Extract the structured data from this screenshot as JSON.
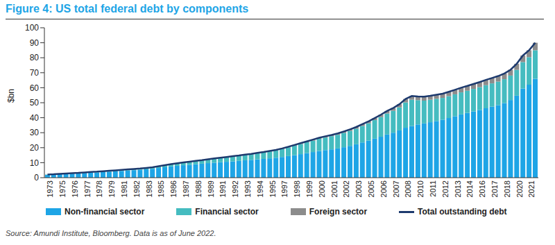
{
  "chart_data": {
    "type": "bar",
    "title": "Figure 4: US total federal debt by components",
    "ylabel": "$bn",
    "source": "Source: Amundi Institute, Bloomberg. Data is as of June 2022.",
    "stacked": true,
    "grid": false,
    "legend": "bottom",
    "ylim": [
      0,
      100
    ],
    "yticks": [
      0,
      10,
      20,
      30,
      40,
      50,
      60,
      70,
      80,
      90,
      100
    ],
    "categories": [
      "1973",
      null,
      "1975",
      null,
      "1976",
      null,
      "1977",
      null,
      "1978",
      null,
      "1979",
      null,
      "1981",
      null,
      "1982",
      null,
      "1983",
      null,
      "1985",
      null,
      "1986",
      null,
      "1987",
      null,
      "1988",
      null,
      "1989",
      null,
      "1991",
      null,
      "1992",
      null,
      "1993",
      null,
      "1994",
      null,
      "1995",
      null,
      "1997",
      null,
      "1998",
      null,
      "1999",
      null,
      "2000",
      null,
      "2001",
      null,
      "2002",
      null,
      "2003",
      null,
      "2005",
      null,
      "2006",
      null,
      "2007",
      null,
      "2008",
      null,
      "2010",
      null,
      "2011",
      null,
      "2012",
      null,
      "2013",
      null,
      "2014",
      null,
      "2016",
      null,
      "2017",
      null,
      "2018",
      null,
      "2020",
      null,
      "2021",
      null
    ],
    "series": [
      {
        "name": "Non-financial sector",
        "type": "bar",
        "color": "#1ea5e6",
        "values": [
          1.9,
          2.1,
          2.35,
          2.5,
          2.7,
          2.85,
          3.1,
          3.35,
          3.5,
          3.75,
          4.0,
          4.25,
          4.5,
          4.75,
          5.0,
          5.25,
          5.55,
          5.9,
          6.45,
          6.95,
          7.5,
          7.9,
          8.3,
          8.6,
          9.0,
          9.3,
          9.7,
          10.0,
          10.3,
          10.6,
          10.9,
          11.2,
          11.6,
          11.9,
          12.2,
          12.5,
          12.9,
          13.3,
          13.8,
          14.4,
          15.0,
          15.7,
          16.4,
          17.1,
          17.8,
          18.4,
          18.9,
          19.5,
          20.3,
          21.2,
          22.3,
          23.5,
          24.7,
          26.0,
          27.3,
          28.8,
          30.0,
          31.5,
          33.3,
          34.5,
          35.5,
          36.2,
          37.0,
          37.8,
          38.7,
          39.8,
          41.0,
          42.2,
          43.2,
          44.2,
          45.2,
          46.3,
          47.4,
          48.4,
          49.8,
          51.8,
          54.7,
          59.5,
          62.0,
          66.0
        ]
      },
      {
        "name": "Financial sector",
        "type": "bar",
        "color": "#45bcc0",
        "values": [
          0.15,
          0.15,
          0.2,
          0.25,
          0.25,
          0.3,
          0.33,
          0.38,
          0.42,
          0.45,
          0.5,
          0.55,
          0.6,
          0.65,
          0.7,
          0.75,
          0.83,
          0.88,
          1.0,
          1.2,
          1.35,
          1.5,
          1.7,
          1.9,
          2.0,
          2.2,
          2.4,
          2.6,
          2.8,
          3.0,
          3.2,
          3.4,
          3.6,
          3.8,
          4.05,
          4.3,
          4.6,
          4.9,
          5.3,
          5.8,
          6.3,
          6.8,
          7.2,
          7.6,
          8.1,
          8.4,
          8.8,
          9.1,
          9.6,
          10.0,
          10.4,
          11.0,
          11.6,
          12.4,
          13.1,
          14.0,
          14.6,
          15.4,
          16.9,
          17.5,
          16.2,
          15.2,
          15.0,
          14.8,
          14.5,
          14.6,
          14.6,
          14.7,
          14.8,
          15.0,
          15.2,
          15.4,
          15.5,
          15.7,
          15.9,
          16.3,
          17.2,
          17.6,
          18.4,
          19.0
        ]
      },
      {
        "name": "Foreign sector",
        "type": "bar",
        "color": "#8c8c8c",
        "values": [
          0.05,
          0.05,
          0.05,
          0.05,
          0.05,
          0.05,
          0.07,
          0.07,
          0.08,
          0.1,
          0.1,
          0.1,
          0.1,
          0.1,
          0.1,
          0.1,
          0.12,
          0.12,
          0.15,
          0.15,
          0.15,
          0.2,
          0.2,
          0.2,
          0.2,
          0.2,
          0.2,
          0.2,
          0.2,
          0.2,
          0.2,
          0.2,
          0.2,
          0.2,
          0.25,
          0.3,
          0.3,
          0.3,
          0.4,
          0.4,
          0.5,
          0.5,
          0.6,
          0.7,
          0.7,
          0.8,
          0.8,
          0.9,
          0.9,
          1.0,
          1.1,
          1.2,
          1.3,
          1.4,
          1.6,
          1.7,
          1.9,
          2.1,
          2.3,
          2.5,
          2.5,
          2.6,
          2.6,
          2.7,
          2.8,
          2.9,
          3.0,
          3.1,
          3.2,
          3.3,
          3.4,
          3.5,
          3.6,
          3.7,
          3.8,
          3.9,
          4.1,
          4.4,
          4.6,
          5.0
        ]
      },
      {
        "name": "Total outstanding debt",
        "type": "line",
        "color": "#1d3a6e",
        "values": [
          2.1,
          2.3,
          2.6,
          2.8,
          3.0,
          3.2,
          3.5,
          3.8,
          4.0,
          4.3,
          4.6,
          4.9,
          5.2,
          5.5,
          5.8,
          6.1,
          6.5,
          6.9,
          7.6,
          8.3,
          9.0,
          9.6,
          10.2,
          10.7,
          11.2,
          11.7,
          12.3,
          12.8,
          13.3,
          13.8,
          14.3,
          14.8,
          15.4,
          15.9,
          16.5,
          17.1,
          17.8,
          18.5,
          19.5,
          20.6,
          21.8,
          23.0,
          24.2,
          25.4,
          26.6,
          27.6,
          28.5,
          29.5,
          30.8,
          32.2,
          33.8,
          35.7,
          37.6,
          39.8,
          42.0,
          44.5,
          46.5,
          49.0,
          52.5,
          54.5,
          54.2,
          54.0,
          54.6,
          55.3,
          56.0,
          57.3,
          58.6,
          60.0,
          61.2,
          62.5,
          63.8,
          65.2,
          66.5,
          67.8,
          69.5,
          72.0,
          76.0,
          81.5,
          85.0,
          90.0
        ]
      }
    ]
  }
}
